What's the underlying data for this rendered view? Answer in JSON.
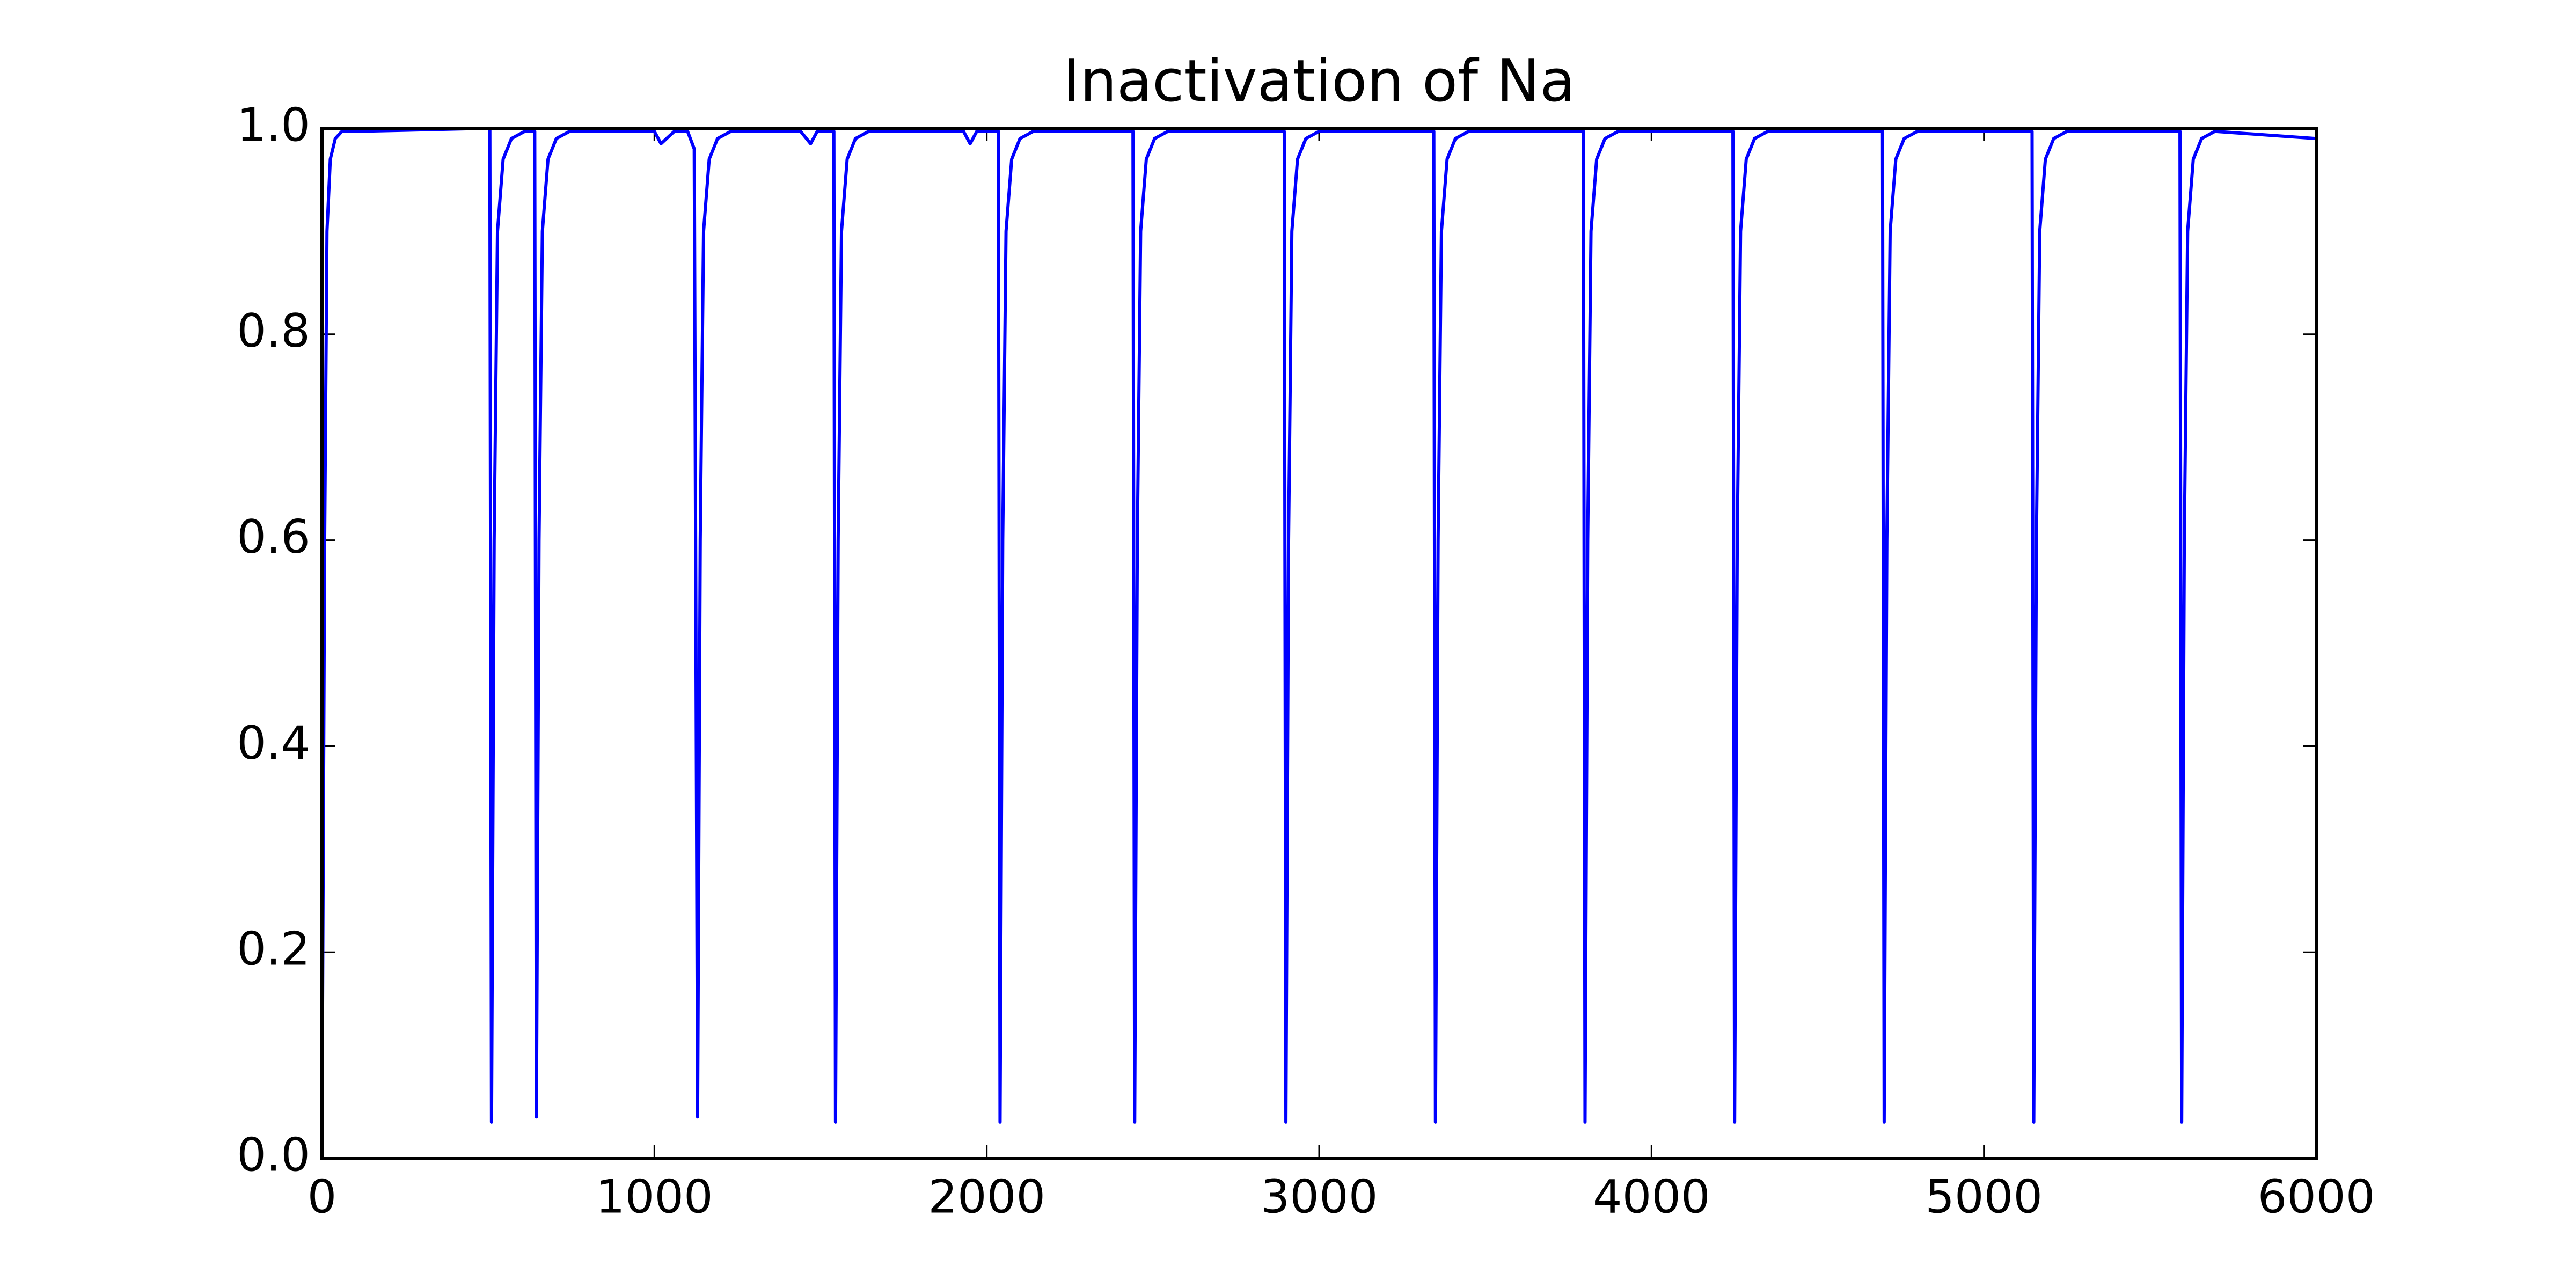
{
  "chart_data": {
    "type": "line",
    "title": "Inactivation of Na",
    "x": [
      0,
      8,
      15,
      25,
      40,
      60,
      100,
      505,
      510,
      518,
      528,
      545,
      570,
      610,
      640,
      645,
      653,
      663,
      680,
      705,
      745,
      1000,
      1020,
      1060,
      1100,
      1120,
      1130,
      1138,
      1148,
      1165,
      1190,
      1230,
      1440,
      1470,
      1490,
      1540,
      1545,
      1553,
      1563,
      1580,
      1605,
      1645,
      1930,
      1950,
      1970,
      2035,
      2040,
      2048,
      2058,
      2075,
      2100,
      2140,
      2440,
      2445,
      2453,
      2463,
      2480,
      2505,
      2545,
      2895,
      2900,
      2908,
      2918,
      2935,
      2960,
      3000,
      3345,
      3350,
      3358,
      3368,
      3385,
      3410,
      3450,
      3795,
      3800,
      3808,
      3818,
      3835,
      3860,
      3900,
      4245,
      4250,
      4258,
      4268,
      4285,
      4310,
      4350,
      4695,
      4700,
      4708,
      4718,
      4735,
      4760,
      4800,
      5145,
      5150,
      5158,
      5168,
      5185,
      5210,
      5250,
      5590,
      5595,
      5603,
      5613,
      5630,
      5655,
      5695,
      6000
    ],
    "values": [
      0.035,
      0.6,
      0.9,
      0.97,
      0.99,
      0.997,
      0.997,
      1.0,
      0.035,
      0.6,
      0.9,
      0.97,
      0.99,
      0.997,
      0.997,
      0.04,
      0.6,
      0.9,
      0.97,
      0.99,
      0.997,
      0.997,
      0.985,
      0.997,
      0.997,
      0.98,
      0.04,
      0.6,
      0.9,
      0.97,
      0.99,
      0.997,
      0.997,
      0.985,
      0.997,
      0.997,
      0.035,
      0.6,
      0.9,
      0.97,
      0.99,
      0.997,
      0.997,
      0.985,
      0.997,
      0.997,
      0.035,
      0.6,
      0.9,
      0.97,
      0.99,
      0.997,
      0.997,
      0.035,
      0.6,
      0.9,
      0.97,
      0.99,
      0.997,
      0.997,
      0.035,
      0.6,
      0.9,
      0.97,
      0.99,
      0.997,
      0.997,
      0.035,
      0.6,
      0.9,
      0.97,
      0.99,
      0.997,
      0.997,
      0.035,
      0.6,
      0.9,
      0.97,
      0.99,
      0.997,
      0.997,
      0.035,
      0.6,
      0.9,
      0.97,
      0.99,
      0.997,
      0.997,
      0.035,
      0.6,
      0.9,
      0.97,
      0.99,
      0.997,
      0.997,
      0.035,
      0.6,
      0.9,
      0.97,
      0.99,
      0.997,
      0.997,
      0.035,
      0.6,
      0.9,
      0.97,
      0.99,
      0.997,
      0.99
    ],
    "color": "#0000ff",
    "xlim": [
      0,
      6000
    ],
    "xticks": [
      0,
      1000,
      2000,
      3000,
      4000,
      5000,
      6000
    ],
    "ylim": [
      0,
      1
    ],
    "yticks": [
      {
        "value": 0,
        "label": "0.0"
      },
      0.2,
      0.4,
      0.6,
      0.8,
      {
        "value": 1,
        "label": "1.0"
      }
    ],
    "grid": false
  }
}
